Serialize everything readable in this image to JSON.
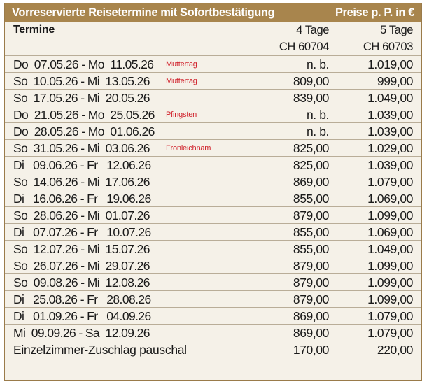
{
  "title": "Vorreservierte Reisetermine mit Sofortbestätigung",
  "price_note": "Preise p. P. in €",
  "header": {
    "col_dates": "Termine",
    "col_4": "4 Tage",
    "col_5": "5 Tage",
    "code_4": "CH 60704",
    "code_5": "CH 60703"
  },
  "rows": [
    {
      "date": "Do  07.05.26 - Mo  11.05.26",
      "note": "Muttertag",
      "p4": "n. b.",
      "p5": "1.019,00"
    },
    {
      "date": "So  10.05.26 - Mi  13.05.26",
      "note": "Muttertag",
      "p4": "809,00",
      "p5": "999,00"
    },
    {
      "date": "So  17.05.26 - Mi  20.05.26",
      "note": "",
      "p4": "839,00",
      "p5": "1.049,00"
    },
    {
      "date": "Do  21.05.26 - Mo  25.05.26",
      "note": "Pfingsten",
      "p4": "n. b.",
      "p5": "1.039,00"
    },
    {
      "date": "Do  28.05.26 - Mo  01.06.26",
      "note": "",
      "p4": "n. b.",
      "p5": "1.039,00"
    },
    {
      "date": "So  31.05.26 - Mi  03.06.26",
      "note": "Fronleichnam",
      "p4": "825,00",
      "p5": "1.029,00"
    },
    {
      "date": "Di   09.06.26 - Fr   12.06.26",
      "note": "",
      "p4": "825,00",
      "p5": "1.039,00"
    },
    {
      "date": "So  14.06.26 - Mi  17.06.26",
      "note": "",
      "p4": "869,00",
      "p5": "1.079,00"
    },
    {
      "date": "Di   16.06.26 - Fr   19.06.26",
      "note": "",
      "p4": "855,00",
      "p5": "1.069,00"
    },
    {
      "date": "So  28.06.26 - Mi  01.07.26",
      "note": "",
      "p4": "879,00",
      "p5": "1.099,00"
    },
    {
      "date": "Di   07.07.26 - Fr   10.07.26",
      "note": "",
      "p4": "855,00",
      "p5": "1.069,00"
    },
    {
      "date": "So  12.07.26 - Mi  15.07.26",
      "note": "",
      "p4": "855,00",
      "p5": "1.049,00"
    },
    {
      "date": "So  26.07.26 - Mi  29.07.26",
      "note": "",
      "p4": "879,00",
      "p5": "1.099,00"
    },
    {
      "date": "So  09.08.26 - Mi  12.08.26",
      "note": "",
      "p4": "879,00",
      "p5": "1.099,00"
    },
    {
      "date": "Di   25.08.26 - Fr   28.08.26",
      "note": "",
      "p4": "879,00",
      "p5": "1.099,00"
    },
    {
      "date": "Di   01.09.26 - Fr   04.09.26",
      "note": "",
      "p4": "869,00",
      "p5": "1.079,00"
    },
    {
      "date": "Mi  09.09.26 - Sa  12.09.26",
      "note": "",
      "p4": "869,00",
      "p5": "1.079,00"
    }
  ],
  "surcharge": {
    "label": "Einzelzimmer-Zuschlag pauschal",
    "p4": "170,00",
    "p5": "220,00"
  },
  "colors": {
    "title_bg": "#a8854d",
    "table_bg": "#f5f1e8",
    "note": "#d0202a",
    "rule": "#b9ad98"
  }
}
